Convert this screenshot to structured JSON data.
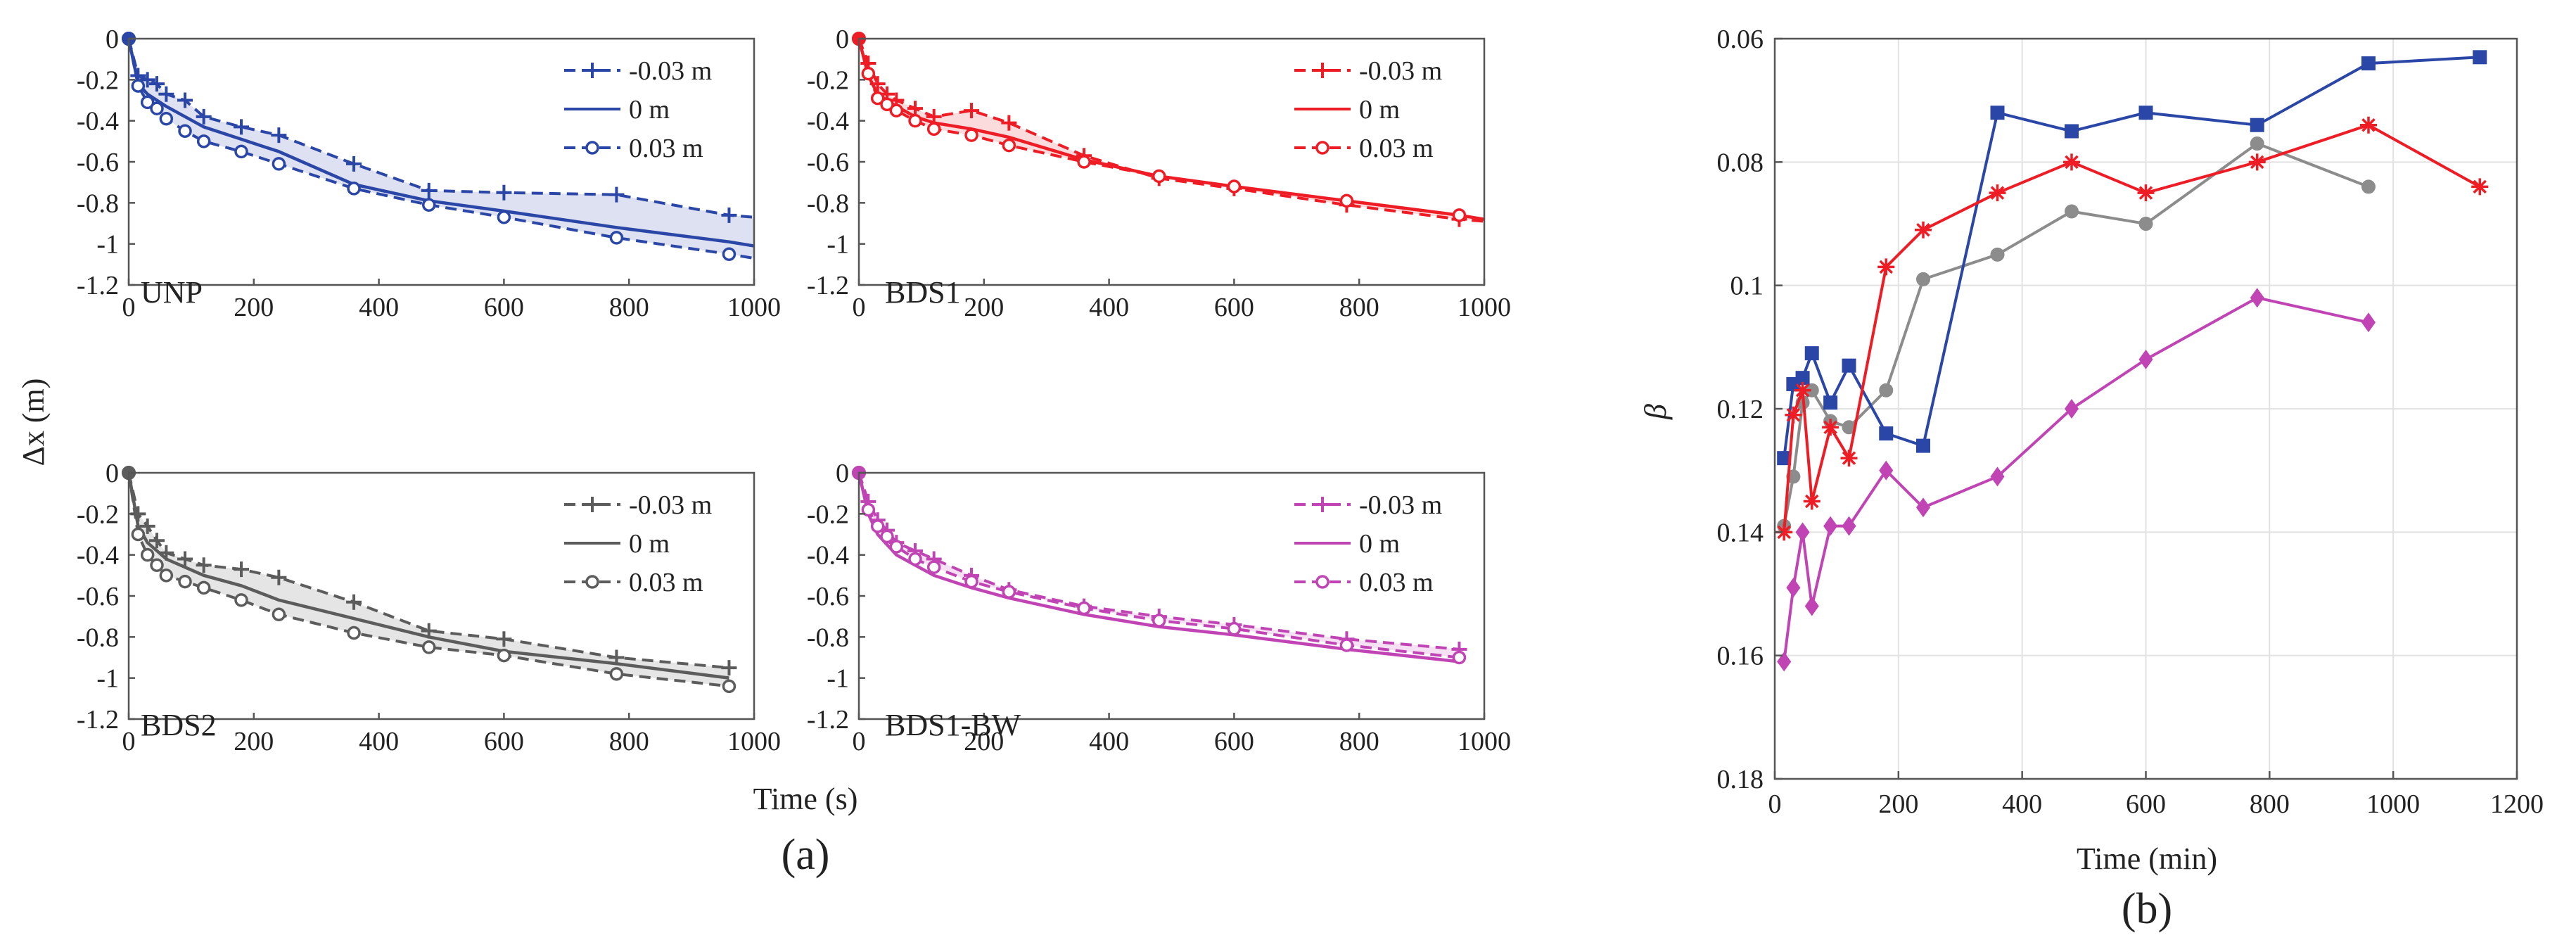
{
  "colors": {
    "UNP": "#2a46a6",
    "BDS1": "#ee1c24",
    "BDS2": "#5c5c5c",
    "BDS1-BW": "#c044b4",
    "beta_UNP": "#2a46a6",
    "beta_BDS1": "#ee1c24",
    "beta_BDS2": "#8c8c8c",
    "beta_BDS1-BW": "#c044b4"
  },
  "captions": {
    "a": "(a)",
    "b": "(b)"
  },
  "chart_data": [
    {
      "type": "line",
      "panel": "UNP",
      "label": "UNP",
      "xlabel": "Time (s)",
      "ylabel": "Δx (m)",
      "xlim": [
        0,
        1000
      ],
      "ylim": [
        -1.2,
        0
      ],
      "xticks": [
        0,
        200,
        400,
        600,
        800,
        1000
      ],
      "yticks": [
        0,
        -0.2,
        -0.4,
        -0.6,
        -0.8,
        -1,
        -1.2
      ],
      "legend": [
        "-0.03 m",
        "0 m",
        "0.03 m"
      ],
      "legend_position": "top-right",
      "shaded_band": true,
      "series": [
        {
          "name": "-0.03 m",
          "style": "dashed",
          "marker": "plus",
          "x": [
            0,
            15,
            30,
            45,
            60,
            90,
            120,
            180,
            240,
            360,
            480,
            600,
            780,
            960,
            1000
          ],
          "y": [
            0,
            -0.18,
            -0.2,
            -0.22,
            -0.27,
            -0.3,
            -0.38,
            -0.43,
            -0.47,
            -0.61,
            -0.74,
            -0.75,
            -0.76,
            -0.86,
            -0.87
          ]
        },
        {
          "name": "0 m",
          "style": "solid",
          "marker": "none",
          "x": [
            0,
            15,
            30,
            45,
            60,
            90,
            120,
            180,
            240,
            360,
            480,
            600,
            780,
            960,
            1000
          ],
          "y": [
            0,
            -0.22,
            -0.27,
            -0.3,
            -0.33,
            -0.38,
            -0.43,
            -0.49,
            -0.55,
            -0.71,
            -0.79,
            -0.84,
            -0.92,
            -0.99,
            -1.01
          ]
        },
        {
          "name": "0.03 m",
          "style": "dashed",
          "marker": "circle",
          "x": [
            0,
            15,
            30,
            45,
            60,
            90,
            120,
            180,
            240,
            360,
            480,
            600,
            780,
            960,
            1000
          ],
          "y": [
            0,
            -0.23,
            -0.31,
            -0.34,
            -0.39,
            -0.45,
            -0.5,
            -0.55,
            -0.61,
            -0.73,
            -0.81,
            -0.87,
            -0.97,
            -1.05,
            -1.07
          ]
        }
      ]
    },
    {
      "type": "line",
      "panel": "BDS1",
      "label": "BDS1",
      "xlabel": "Time (s)",
      "ylabel": "Δx (m)",
      "xlim": [
        0,
        1000
      ],
      "ylim": [
        -1.2,
        0
      ],
      "xticks": [
        0,
        200,
        400,
        600,
        800,
        1000
      ],
      "yticks": [
        0,
        -0.2,
        -0.4,
        -0.6,
        -0.8,
        -1,
        -1.2
      ],
      "legend": [
        "-0.03 m",
        "0 m",
        "0.03 m"
      ],
      "legend_position": "top-right",
      "shaded_band": true,
      "series": [
        {
          "name": "-0.03 m",
          "style": "dashed",
          "marker": "plus",
          "x": [
            0,
            15,
            30,
            45,
            60,
            90,
            120,
            180,
            240,
            360,
            480,
            600,
            780,
            960,
            1000
          ],
          "y": [
            0,
            -0.12,
            -0.22,
            -0.27,
            -0.3,
            -0.34,
            -0.38,
            -0.35,
            -0.41,
            -0.57,
            -0.68,
            -0.73,
            -0.81,
            -0.88,
            -0.89
          ]
        },
        {
          "name": "0 m",
          "style": "solid",
          "marker": "none",
          "x": [
            0,
            15,
            30,
            45,
            60,
            90,
            120,
            180,
            240,
            360,
            480,
            600,
            780,
            960,
            1000
          ],
          "y": [
            0,
            -0.18,
            -0.27,
            -0.3,
            -0.33,
            -0.38,
            -0.41,
            -0.44,
            -0.48,
            -0.59,
            -0.67,
            -0.72,
            -0.79,
            -0.86,
            -0.88
          ]
        },
        {
          "name": "0.03 m",
          "style": "dashed",
          "marker": "circle",
          "x": [
            0,
            15,
            30,
            45,
            60,
            90,
            120,
            180,
            240,
            360,
            480,
            600,
            780,
            960,
            1000
          ],
          "y": [
            0,
            -0.17,
            -0.29,
            -0.32,
            -0.35,
            -0.4,
            -0.44,
            -0.47,
            -0.52,
            -0.6,
            -0.67,
            -0.72,
            -0.79,
            -0.86,
            -0.88
          ]
        }
      ]
    },
    {
      "type": "line",
      "panel": "BDS2",
      "label": "BDS2",
      "xlabel": "Time (s)",
      "ylabel": "Δx (m)",
      "xlim": [
        0,
        1000
      ],
      "ylim": [
        -1.2,
        0
      ],
      "xticks": [
        0,
        200,
        400,
        600,
        800,
        1000
      ],
      "yticks": [
        0,
        -0.2,
        -0.4,
        -0.6,
        -0.8,
        -1,
        -1.2
      ],
      "legend": [
        "-0.03 m",
        "0 m",
        "0.03 m"
      ],
      "legend_position": "top-right",
      "shaded_band": true,
      "series": [
        {
          "name": "-0.03 m",
          "style": "dashed",
          "marker": "plus",
          "x": [
            0,
            15,
            30,
            45,
            60,
            90,
            120,
            180,
            240,
            360,
            480,
            600,
            780,
            960
          ],
          "y": [
            0,
            -0.2,
            -0.26,
            -0.33,
            -0.39,
            -0.42,
            -0.45,
            -0.47,
            -0.51,
            -0.63,
            -0.77,
            -0.81,
            -0.9,
            -0.95
          ]
        },
        {
          "name": "0 m",
          "style": "solid",
          "marker": "none",
          "x": [
            0,
            15,
            30,
            45,
            60,
            90,
            120,
            180,
            240,
            360,
            480,
            600,
            780,
            960
          ],
          "y": [
            0,
            -0.26,
            -0.34,
            -0.38,
            -0.42,
            -0.46,
            -0.5,
            -0.55,
            -0.62,
            -0.71,
            -0.8,
            -0.87,
            -0.93,
            -1.0
          ]
        },
        {
          "name": "0.03 m",
          "style": "dashed",
          "marker": "circle",
          "x": [
            0,
            15,
            30,
            45,
            60,
            90,
            120,
            180,
            240,
            360,
            480,
            600,
            780,
            960
          ],
          "y": [
            0,
            -0.3,
            -0.4,
            -0.45,
            -0.5,
            -0.53,
            -0.56,
            -0.62,
            -0.69,
            -0.78,
            -0.85,
            -0.89,
            -0.98,
            -1.04
          ]
        }
      ]
    },
    {
      "type": "line",
      "panel": "BDS1-BW",
      "label": "BDS1-BW",
      "xlabel": "Time (s)",
      "ylabel": "Δx (m)",
      "xlim": [
        0,
        1000
      ],
      "ylim": [
        -1.2,
        0
      ],
      "xticks": [
        0,
        200,
        400,
        600,
        800,
        1000
      ],
      "yticks": [
        0,
        -0.2,
        -0.4,
        -0.6,
        -0.8,
        -1,
        -1.2
      ],
      "legend": [
        "-0.03 m",
        "0 m",
        "0.03 m"
      ],
      "legend_position": "top-right",
      "shaded_band": true,
      "series": [
        {
          "name": "-0.03 m",
          "style": "dashed",
          "marker": "plus",
          "x": [
            0,
            15,
            30,
            45,
            60,
            90,
            120,
            180,
            240,
            360,
            480,
            600,
            780,
            960
          ],
          "y": [
            0,
            -0.14,
            -0.23,
            -0.28,
            -0.34,
            -0.38,
            -0.42,
            -0.5,
            -0.57,
            -0.65,
            -0.7,
            -0.74,
            -0.81,
            -0.86
          ]
        },
        {
          "name": "0 m",
          "style": "solid",
          "marker": "none",
          "x": [
            0,
            15,
            30,
            45,
            60,
            90,
            120,
            180,
            240,
            360,
            480,
            600,
            780,
            960
          ],
          "y": [
            0,
            -0.2,
            -0.3,
            -0.35,
            -0.4,
            -0.45,
            -0.5,
            -0.56,
            -0.61,
            -0.69,
            -0.75,
            -0.79,
            -0.86,
            -0.92
          ]
        },
        {
          "name": "0.03 m",
          "style": "dashed",
          "marker": "circle",
          "x": [
            0,
            15,
            30,
            45,
            60,
            90,
            120,
            180,
            240,
            360,
            480,
            600,
            780,
            960
          ],
          "y": [
            0,
            -0.18,
            -0.26,
            -0.31,
            -0.36,
            -0.42,
            -0.46,
            -0.53,
            -0.58,
            -0.66,
            -0.72,
            -0.76,
            -0.84,
            -0.9
          ]
        }
      ]
    },
    {
      "type": "line",
      "panel": "beta",
      "xlabel": "Time (min)",
      "ylabel": "β",
      "xlim": [
        0,
        1200
      ],
      "ylim": [
        0.06,
        0.18
      ],
      "y_reversed": true,
      "xticks": [
        0,
        200,
        400,
        600,
        800,
        1000,
        1200
      ],
      "yticks": [
        0.06,
        0.08,
        0.1,
        0.12,
        0.14,
        0.16,
        0.18
      ],
      "grid": true,
      "series": [
        {
          "name": "UNP",
          "marker": "square",
          "x": [
            15,
            30,
            45,
            60,
            90,
            120,
            180,
            240,
            360,
            480,
            600,
            780,
            960,
            1140
          ],
          "y": [
            0.128,
            0.116,
            0.115,
            0.111,
            0.119,
            0.113,
            0.124,
            0.126,
            0.072,
            0.075,
            0.072,
            0.074,
            0.064,
            0.063
          ]
        },
        {
          "name": "BDS1",
          "marker": "asterisk",
          "x": [
            15,
            30,
            45,
            60,
            90,
            120,
            180,
            240,
            360,
            480,
            600,
            780,
            960,
            1140
          ],
          "y": [
            0.14,
            0.121,
            0.117,
            0.135,
            0.123,
            0.128,
            0.097,
            0.091,
            0.085,
            0.08,
            0.085,
            0.08,
            0.074,
            0.084
          ]
        },
        {
          "name": "BDS2",
          "marker": "circle",
          "x": [
            15,
            30,
            45,
            60,
            90,
            120,
            180,
            240,
            360,
            480,
            600,
            780,
            960
          ],
          "y": [
            0.139,
            0.131,
            0.119,
            0.117,
            0.122,
            0.123,
            0.117,
            0.099,
            0.095,
            0.088,
            0.09,
            0.077,
            0.084
          ]
        },
        {
          "name": "BDS1-BW",
          "marker": "diamond",
          "x": [
            15,
            30,
            45,
            60,
            90,
            120,
            180,
            240,
            360,
            480,
            600,
            780,
            960
          ],
          "y": [
            0.161,
            0.149,
            0.14,
            0.152,
            0.139,
            0.139,
            0.13,
            0.136,
            0.131,
            0.12,
            0.112,
            0.102,
            0.106
          ]
        }
      ]
    }
  ]
}
